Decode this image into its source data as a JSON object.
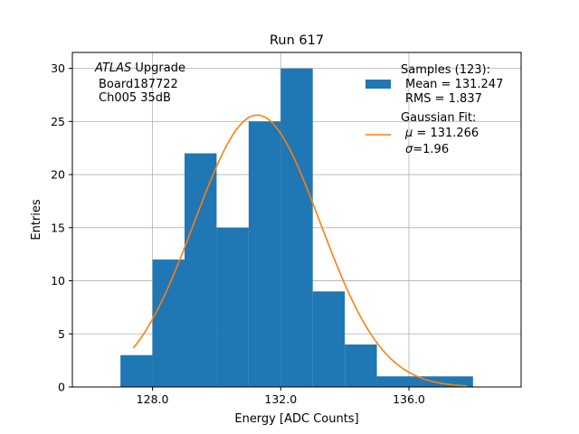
{
  "chart_data": {
    "type": "bar",
    "title": "Run 617",
    "xlabel": "Energy [ADC Counts]",
    "ylabel": "Entries",
    "xlim": [
      125.5,
      139.5
    ],
    "ylim": [
      0,
      31.5
    ],
    "grid": true,
    "xticks": [
      128,
      132,
      136
    ],
    "xtick_labels": [
      "128.0",
      "132.0",
      "136.0"
    ],
    "yticks": [
      0,
      5,
      10,
      15,
      20,
      25,
      30
    ],
    "ytick_labels": [
      "0",
      "5",
      "10",
      "15",
      "20",
      "25",
      "30"
    ],
    "histogram": {
      "name": "Samples (123):",
      "color": "#1f77b4",
      "bins": [
        {
          "left": 127,
          "right": 128,
          "count": 3
        },
        {
          "left": 128,
          "right": 129,
          "count": 12
        },
        {
          "left": 129,
          "right": 130,
          "count": 22
        },
        {
          "left": 130,
          "right": 131,
          "count": 15
        },
        {
          "left": 131,
          "right": 132,
          "count": 25
        },
        {
          "left": 132,
          "right": 133,
          "count": 30
        },
        {
          "left": 133,
          "right": 134,
          "count": 9
        },
        {
          "left": 134,
          "right": 135,
          "count": 4
        },
        {
          "left": 135,
          "right": 136,
          "count": 1
        },
        {
          "left": 136,
          "right": 137,
          "count": 1
        },
        {
          "left": 137,
          "right": 138,
          "count": 1
        }
      ]
    },
    "fit": {
      "name": "Gaussian Fit:",
      "color": "#ff7f0e",
      "mu": 131.266,
      "sigma": 1.96,
      "amplitude": 25.6,
      "x_range": [
        127.4,
        137.8
      ]
    },
    "annotation": {
      "line1_italic": "ATLAS",
      "line1_rest": " Upgrade",
      "line2": "Board187722",
      "line3": "Ch005 35dB"
    },
    "legend": {
      "position": "top-right",
      "hist_title": "Samples (123):",
      "hist_mean": "Mean = 131.247",
      "hist_rms": "RMS = 1.837",
      "fit_title": "Gaussian Fit:",
      "fit_mu_symbol": "μ",
      "fit_mu_value": " = 131.266",
      "fit_sigma_symbol": "σ",
      "fit_sigma_value": "=1.96"
    }
  }
}
